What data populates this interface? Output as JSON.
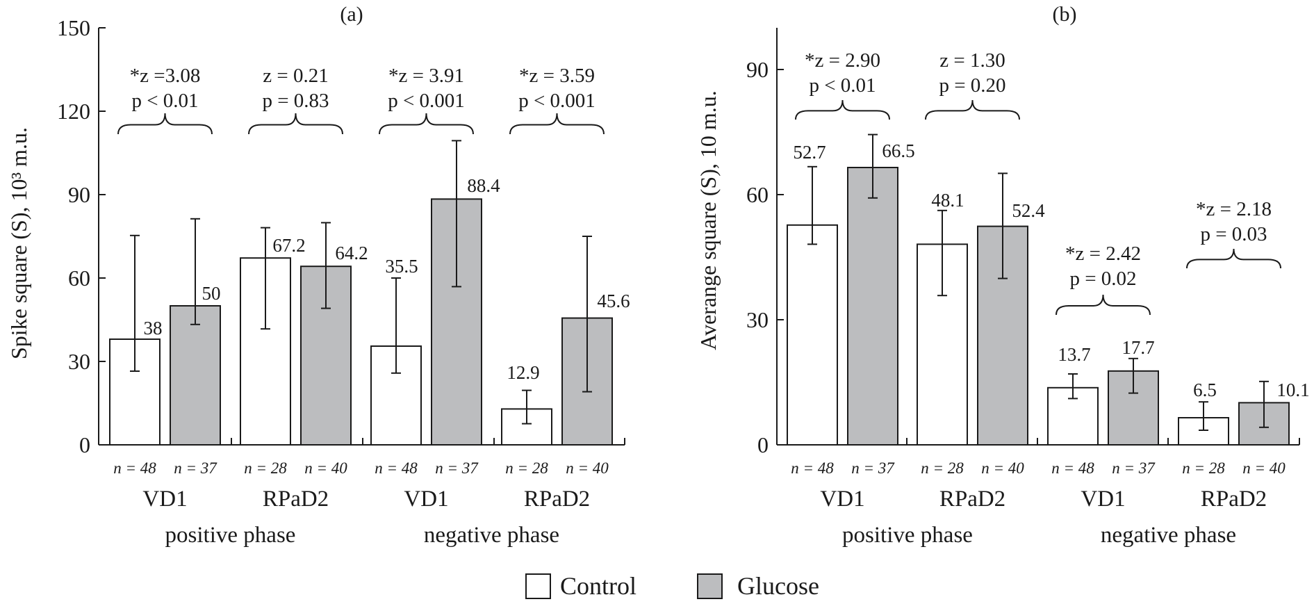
{
  "legend": {
    "control": "Control",
    "glucose": "Glucose"
  },
  "colors": {
    "control": "#ffffff",
    "glucose": "#bcbdbf",
    "stroke": "#1a1a1a"
  },
  "chart_data": [
    {
      "type": "bar",
      "title": "(a)",
      "ylabel": "Spike square (S), 10³ m.u.",
      "ylim": [
        0,
        150
      ],
      "yticks": [
        0,
        30,
        60,
        90,
        120,
        150
      ],
      "grid": false,
      "legend_position": "bottom",
      "groups": [
        "VD1",
        "RPaD2",
        "VD1",
        "RPaD2"
      ],
      "phases": [
        "positive phase",
        "negative phase"
      ],
      "series": [
        {
          "name": "Control",
          "values": [
            38,
            67.2,
            35.5,
            12.9
          ],
          "labels": [
            "38",
            "67.2",
            "35.5",
            "12.9"
          ],
          "err_high": [
            75.3,
            78.1,
            60,
            19.6
          ],
          "err_low": [
            26.5,
            41.7,
            25.8,
            7.6
          ],
          "n": [
            "n = 48",
            "n = 28",
            "n = 48",
            "n = 28"
          ]
        },
        {
          "name": "Glucose",
          "values": [
            50,
            64.2,
            88.4,
            45.6
          ],
          "labels": [
            "50",
            "64.2",
            "88.4",
            "45.6"
          ],
          "err_high": [
            81.3,
            79.9,
            109.4,
            75
          ],
          "err_low": [
            43.3,
            49.1,
            56.9,
            19.1
          ],
          "n": [
            "n = 37",
            "n = 40",
            "n = 37",
            "n = 40"
          ]
        }
      ],
      "annotations": [
        {
          "z": "*z =3.08",
          "p": "p < 0.01"
        },
        {
          "z": "z = 0.21",
          "p": "p = 0.83"
        },
        {
          "z": "*z = 3.91",
          "p": "p < 0.001"
        },
        {
          "z": "*z = 3.59",
          "p": "p < 0.001"
        }
      ]
    },
    {
      "type": "bar",
      "title": "(b)",
      "ylabel": "Averange square (S), 10 m.u.",
      "ylim": [
        0,
        100
      ],
      "yticks": [
        0,
        30,
        60,
        90
      ],
      "grid": false,
      "legend_position": "bottom",
      "groups": [
        "VD1",
        "RPaD2",
        "VD1",
        "RPaD2"
      ],
      "phases": [
        "positive phase",
        "negative phase"
      ],
      "series": [
        {
          "name": "Control",
          "values": [
            52.7,
            48.1,
            13.7,
            6.5
          ],
          "labels": [
            "52.7",
            "48.1",
            "13.7",
            "6.5"
          ],
          "err_high": [
            66.7,
            56.2,
            17.0,
            10.3
          ],
          "err_low": [
            48.1,
            35.8,
            11.1,
            3.5
          ],
          "n": [
            "n = 48",
            "n = 28",
            "n = 48",
            "n = 28"
          ]
        },
        {
          "name": "Glucose",
          "values": [
            66.5,
            52.4,
            17.7,
            10.1
          ],
          "labels": [
            "66.5",
            "52.4",
            "17.7",
            "10.1"
          ],
          "err_high": [
            74.4,
            65.1,
            20.7,
            15.2
          ],
          "err_low": [
            59.2,
            39.9,
            12.4,
            4.2
          ],
          "n": [
            "n = 37",
            "n = 40",
            "n = 37",
            "n = 40"
          ]
        }
      ],
      "annotations": [
        {
          "z": "*z = 2.90",
          "p": "p < 0.01"
        },
        {
          "z": "z = 1.30",
          "p": "p = 0.20"
        },
        {
          "z": "*z = 2.42",
          "p": "p = 0.02"
        },
        {
          "z": "*z = 2.18",
          "p": "p = 0.03"
        }
      ]
    }
  ]
}
